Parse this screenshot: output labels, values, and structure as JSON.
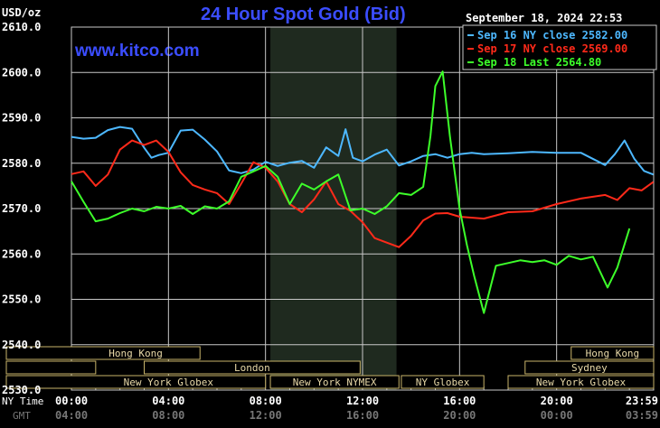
{
  "header": {
    "title": "24 Hour Spot Gold (Bid)",
    "units": "USD/oz",
    "brand": "www.kitco.com",
    "timestamp": "September 18, 2024 22:53"
  },
  "colors": {
    "background": "#000000",
    "plot": "#000000",
    "night_shade": "#1f2a1f",
    "grid": "#c8c8c8",
    "title": "#3b4dff",
    "sep16": "#4db8ff",
    "sep17": "#ff2a1a",
    "sep18": "#3dff2a",
    "market_border": "#c8b46a"
  },
  "axis_labels": {
    "ny_time": "NY Time",
    "gmt": "GMT"
  },
  "chart_data": {
    "type": "line",
    "title": "24 Hour Spot Gold (Bid)",
    "ylabel": "USD/oz",
    "ylim": [
      2530,
      2610
    ],
    "yticks": [
      "2530.0",
      "2540.0",
      "2550.0",
      "2560.0",
      "2570.0",
      "2580.0",
      "2590.0",
      "2600.0",
      "2610.0"
    ],
    "xlim": [
      0,
      24
    ],
    "xticks_ny": [
      "00:00",
      "04:00",
      "08:00",
      "12:00",
      "16:00",
      "20:00",
      "23:59"
    ],
    "xticks_gmt": [
      "04:00",
      "08:00",
      "12:00",
      "16:00",
      "20:00",
      "00:00",
      "03:59"
    ],
    "grid": true,
    "legend_position": "top-right",
    "shaded_periods": [
      [
        8.2,
        13.4
      ]
    ],
    "series": [
      {
        "name": "Sep 16 NY close 2582.00",
        "color": "#4db8ff",
        "x": [
          0,
          0.5,
          1,
          1.5,
          2,
          2.5,
          3,
          3.3,
          3.6,
          4,
          4.5,
          5,
          5.5,
          6,
          6.5,
          7,
          7.5,
          8,
          8.5,
          9,
          9.5,
          10,
          10.5,
          11,
          11.3,
          11.6,
          12,
          12.5,
          13,
          13.5,
          14,
          14.5,
          15,
          15.5,
          16,
          16.5,
          17,
          18,
          19,
          20,
          21,
          22,
          22.4,
          22.8,
          23.2,
          23.6,
          23.99
        ],
        "y": [
          2585.8,
          2585.4,
          2585.6,
          2587.3,
          2588.0,
          2587.6,
          2583.4,
          2581.2,
          2581.8,
          2582.3,
          2587.2,
          2587.4,
          2585.2,
          2582.6,
          2578.4,
          2577.8,
          2578.6,
          2580.3,
          2579.4,
          2580.1,
          2580.5,
          2579.0,
          2583.5,
          2581.6,
          2587.5,
          2581.2,
          2580.4,
          2581.9,
          2583.0,
          2579.5,
          2580.4,
          2581.6,
          2582.0,
          2581.2,
          2582.0,
          2582.3,
          2582.0,
          2582.2,
          2582.5,
          2582.3,
          2582.3,
          2579.6,
          2582.0,
          2585.0,
          2581.0,
          2578.3,
          2577.5
        ]
      },
      {
        "name": "Sep 17 NY close 2569.00",
        "color": "#ff2a1a",
        "x": [
          0,
          0.5,
          1,
          1.5,
          2,
          2.5,
          3,
          3.5,
          4,
          4.5,
          5,
          5.5,
          6,
          6.5,
          7,
          7.5,
          8,
          8.5,
          9,
          9.5,
          10,
          10.5,
          11,
          11.5,
          12,
          12.5,
          13,
          13.5,
          14,
          14.5,
          15,
          15.5,
          16,
          17,
          18,
          19,
          20,
          21,
          22,
          22.5,
          23,
          23.5,
          23.99
        ],
        "y": [
          2577.6,
          2578.2,
          2575.0,
          2577.5,
          2583.0,
          2585.0,
          2584.0,
          2585.0,
          2582.5,
          2578.0,
          2575.2,
          2574.2,
          2573.4,
          2571.0,
          2575.5,
          2580.2,
          2579.0,
          2576.0,
          2571.0,
          2569.2,
          2572.0,
          2576.0,
          2571.0,
          2569.5,
          2567.0,
          2563.5,
          2562.5,
          2561.5,
          2564.0,
          2567.4,
          2568.9,
          2569.0,
          2568.2,
          2567.8,
          2569.2,
          2569.4,
          2571.0,
          2572.2,
          2573.0,
          2571.9,
          2574.5,
          2574.0,
          2575.9
        ]
      },
      {
        "name": "Sep 18 Last 2564.80",
        "color": "#3dff2a",
        "x": [
          0,
          0.5,
          1,
          1.5,
          2,
          2.5,
          3,
          3.5,
          4,
          4.5,
          5,
          5.5,
          6,
          6.5,
          7,
          7.5,
          8,
          8.5,
          9,
          9.5,
          10,
          10.5,
          11,
          11.5,
          12,
          12.5,
          13,
          13.5,
          14,
          14.5,
          14.8,
          15.0,
          15.3,
          15.6,
          16,
          16.3,
          16.6,
          17,
          17.5,
          18,
          18.5,
          19,
          19.5,
          20,
          20.5,
          21,
          21.5,
          21.8,
          22.1,
          22.5,
          23
        ],
        "y": [
          2576.0,
          2571.5,
          2567.2,
          2567.8,
          2569.0,
          2570.0,
          2569.4,
          2570.4,
          2570.0,
          2570.6,
          2568.8,
          2570.5,
          2570.0,
          2571.6,
          2577.0,
          2578.2,
          2579.4,
          2577.0,
          2571.0,
          2575.5,
          2574.2,
          2576.0,
          2577.5,
          2569.6,
          2570.0,
          2568.8,
          2570.5,
          2573.4,
          2573.0,
          2574.8,
          2586.0,
          2597.0,
          2600.2,
          2586.0,
          2570.0,
          2562.0,
          2555.2,
          2547.0,
          2557.4,
          2558.0,
          2558.6,
          2558.2,
          2558.6,
          2557.6,
          2559.6,
          2558.8,
          2559.4,
          2556.0,
          2552.6,
          2557.0,
          2565.6
        ]
      }
    ]
  },
  "markets": [
    {
      "label": "Hong Kong",
      "row": 0,
      "start": 0,
      "end": 5.3
    },
    {
      "label": "",
      "row": 1,
      "start": 0,
      "end": 1.0
    },
    {
      "label": "London",
      "row": 1,
      "start": 3.0,
      "end": 11.9
    },
    {
      "label": "New York Globex",
      "row": 2,
      "start": 0,
      "end": 8.0
    },
    {
      "label": "New York NYMEX",
      "row": 2,
      "start": 8.2,
      "end": 13.5
    },
    {
      "label": "NY Globex",
      "row": 2,
      "start": 13.6,
      "end": 17.0
    },
    {
      "label": "Hong Kong",
      "row": 0,
      "start": 20.6,
      "end": 24
    },
    {
      "label": "Sydney",
      "row": 1,
      "start": 18.7,
      "end": 24
    },
    {
      "label": "New York Globex",
      "row": 2,
      "start": 18.0,
      "end": 24
    }
  ]
}
